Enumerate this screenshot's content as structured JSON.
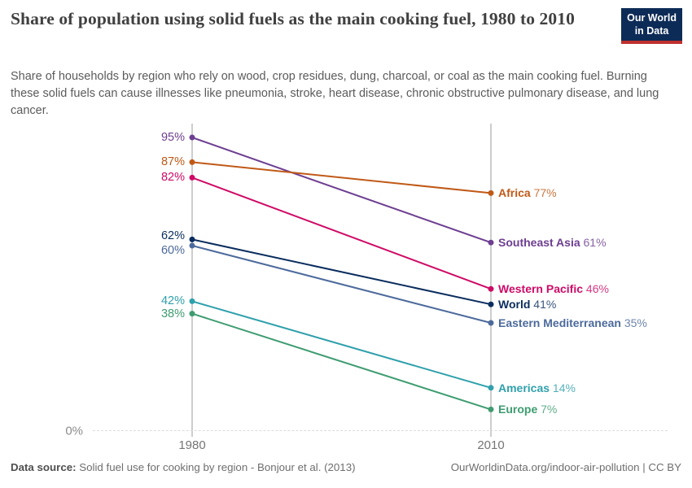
{
  "logo": {
    "line1": "Our World",
    "line2": "in Data"
  },
  "chart_data": {
    "type": "line",
    "variant": "slope",
    "title": "Share of population using solid fuels as the main cooking fuel, 1980 to 2010",
    "subtitle": "Share of households by region who rely on wood, crop residues, dung, charcoal, or coal as the main cooking fuel. Burning these solid fuels can cause illnesses like pneumonia, stroke, heart disease, chronic obstructive pulmonary disease, and lung cancer.",
    "x": [
      1980,
      2010
    ],
    "x_tick_labels": [
      "1980",
      "2010"
    ],
    "y_axis": {
      "baseline_label": "0%",
      "ylim": [
        0,
        100
      ],
      "unit": "%"
    },
    "legend_position": "right-inline",
    "grid": "baseline-dashed-only",
    "series": [
      {
        "name": "Southeast Asia",
        "color": "#6d3e91",
        "values": [
          95,
          61
        ],
        "start_label": "95%",
        "end_label": "61%"
      },
      {
        "name": "Africa",
        "color": "#c05917",
        "values": [
          87,
          77
        ],
        "start_label": "87%",
        "end_label": "77%"
      },
      {
        "name": "Western Pacific",
        "color": "#cf0a66",
        "values": [
          82,
          46
        ],
        "start_label": "82%",
        "end_label": "46%"
      },
      {
        "name": "World",
        "color": "#0a2d5e",
        "values": [
          62,
          41
        ],
        "start_label": "62%",
        "end_label": "41%"
      },
      {
        "name": "Eastern Mediterranean",
        "color": "#4c6a9c",
        "values": [
          60,
          35
        ],
        "start_label": "60%",
        "end_label": "35%"
      },
      {
        "name": "Americas",
        "color": "#2fa0ac",
        "values": [
          42,
          14
        ],
        "start_label": "42%",
        "end_label": "14%"
      },
      {
        "name": "Europe",
        "color": "#3e9c70",
        "values": [
          38,
          7
        ],
        "start_label": "38%",
        "end_label": "7%"
      }
    ]
  },
  "footer": {
    "source_label": "Data source:",
    "source_text": " Solid fuel use for cooking by region - Bonjour et al. (2013)",
    "credit": "OurWorldinData.org/indoor-air-pollution | CC BY"
  }
}
